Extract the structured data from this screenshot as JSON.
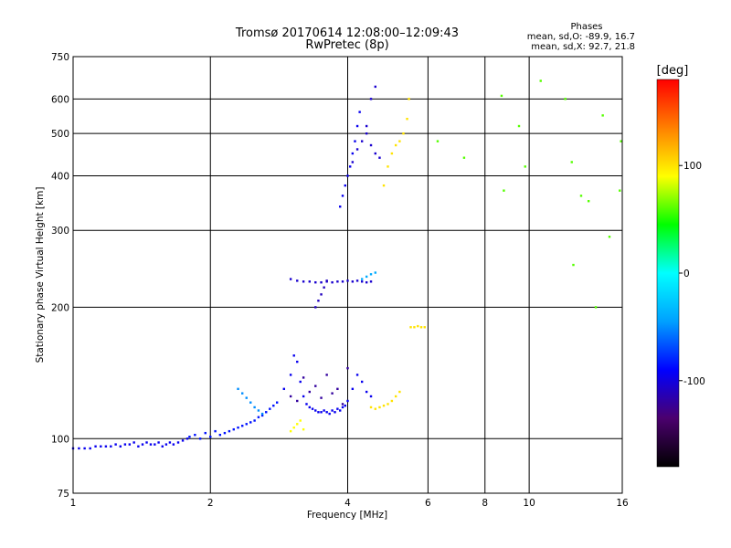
{
  "chart_data": {
    "type": "scatter",
    "title": "Tromsø 20170614 12:08:00–12:09:43",
    "subtitle": "RwPretec (8p)",
    "annotation": {
      "heading": "Phases",
      "o_line": "mean, sd,O: -89.9, 16.7",
      "x_line": "mean, sd,X:  92.7, 21.8"
    },
    "xlabel": "Frequency [MHz]",
    "ylabel": "Stationary phase Virtual Height [km]",
    "xscale": "log",
    "yscale": "log",
    "xlim": [
      1,
      16
    ],
    "ylim": [
      75,
      750
    ],
    "x_ticks": [
      1,
      2,
      4,
      6,
      8,
      10,
      16
    ],
    "x_tick_labels": [
      "1",
      "2",
      "4",
      "6",
      "8",
      "10",
      "16"
    ],
    "y_ticks": [
      75,
      100,
      200,
      300,
      400,
      500,
      600,
      750
    ],
    "y_tick_labels": [
      "75",
      "100",
      "200",
      "300",
      "400",
      "500",
      "600",
      "750"
    ],
    "grid": true,
    "colorbar": {
      "label": "[deg]",
      "range": [
        -180,
        180
      ],
      "ticks": [
        100,
        0,
        -100
      ],
      "tick_labels": [
        "100",
        "0",
        "-100"
      ]
    },
    "colormap": [
      "#000000",
      "#4b006e",
      "#0000ff",
      "#00a0ff",
      "#00ffff",
      "#00ff00",
      "#ffff00",
      "#ff8000",
      "#ff0000"
    ],
    "gridline_color": "#000000",
    "point_groups": [
      {
        "name": "o-trace-low",
        "phase": -95,
        "x": [
          1.0,
          1.03,
          1.06,
          1.09,
          1.12,
          1.15,
          1.18,
          1.21,
          1.24,
          1.27,
          1.3,
          1.33,
          1.36,
          1.39,
          1.42,
          1.45,
          1.48,
          1.51,
          1.54,
          1.57,
          1.6,
          1.63,
          1.66,
          1.7,
          1.74,
          1.78
        ],
        "y": [
          95,
          95,
          95,
          95,
          96,
          96,
          96,
          96,
          97,
          96,
          97,
          97,
          98,
          96,
          97,
          98,
          97,
          97,
          98,
          96,
          97,
          98,
          97,
          98,
          99,
          100
        ]
      },
      {
        "name": "o-trace-rise",
        "phase": -85,
        "x": [
          1.8,
          1.85,
          1.9,
          1.95,
          2.0,
          2.05,
          2.1,
          2.15,
          2.2,
          2.25,
          2.3,
          2.35,
          2.4,
          2.45,
          2.5,
          2.55,
          2.6,
          2.65,
          2.7,
          2.75,
          2.8
        ],
        "y": [
          101,
          102,
          100,
          103,
          101,
          104,
          102,
          103,
          104,
          105,
          106,
          107,
          108,
          109,
          110,
          112,
          113,
          115,
          117,
          119,
          121
        ]
      },
      {
        "name": "cyan-hook",
        "phase": -50,
        "x": [
          2.3,
          2.35,
          2.4,
          2.45,
          2.5,
          2.55,
          2.6
        ],
        "y": [
          130,
          127,
          124,
          121,
          118,
          116,
          114
        ]
      },
      {
        "name": "o-trace-mid",
        "phase": -95,
        "x": [
          2.9,
          3.0,
          3.05,
          3.1,
          3.15,
          3.2,
          3.25,
          3.3,
          3.35,
          3.4,
          3.45,
          3.5,
          3.55,
          3.6,
          3.65,
          3.7,
          3.75,
          3.8,
          3.85,
          3.9,
          3.95,
          4.0,
          4.1,
          4.2,
          4.3,
          4.4,
          4.5
        ],
        "y": [
          130,
          140,
          155,
          150,
          135,
          125,
          120,
          118,
          117,
          116,
          115,
          115,
          116,
          115,
          114,
          116,
          115,
          117,
          116,
          118,
          119,
          122,
          130,
          140,
          135,
          128,
          125
        ]
      },
      {
        "name": "mid-blue-noise",
        "phase": -120,
        "x": [
          3.0,
          3.1,
          3.2,
          3.3,
          3.4,
          3.5,
          3.6,
          3.7,
          3.8,
          3.9,
          4.0
        ],
        "y": [
          125,
          122,
          138,
          128,
          132,
          124,
          140,
          127,
          130,
          120,
          145
        ]
      },
      {
        "name": "yellow-low",
        "phase": 100,
        "x": [
          4.5,
          4.6,
          4.7,
          4.8,
          4.9,
          5.0,
          5.1,
          5.2
        ],
        "y": [
          118,
          117,
          118,
          119,
          120,
          122,
          125,
          128
        ]
      },
      {
        "name": "yellow-scatter-low",
        "phase": 90,
        "x": [
          3.0,
          3.05,
          3.1,
          3.15,
          3.2
        ],
        "y": [
          104,
          106,
          108,
          110,
          105
        ]
      },
      {
        "name": "e-layer",
        "phase": -105,
        "x": [
          3.0,
          3.1,
          3.2,
          3.3,
          3.4,
          3.5,
          3.6,
          3.7,
          3.8,
          3.9,
          4.0,
          4.1,
          4.2,
          4.3,
          4.4,
          4.5
        ],
        "y": [
          232,
          230,
          229,
          229,
          228,
          228,
          229,
          228,
          229,
          229,
          230,
          229,
          230,
          229,
          228,
          229
        ]
      },
      {
        "name": "e-layer-drop",
        "phase": -110,
        "x": [
          3.4,
          3.45,
          3.5,
          3.55,
          3.6
        ],
        "y": [
          200,
          207,
          214,
          222,
          230
        ]
      },
      {
        "name": "e-layer-cyan",
        "phase": -40,
        "x": [
          4.3,
          4.4,
          4.5,
          4.6
        ],
        "y": [
          232,
          235,
          238,
          240
        ]
      },
      {
        "name": "f-rise",
        "phase": -95,
        "x": [
          3.85,
          3.9,
          3.95,
          4.0,
          4.05,
          4.1,
          4.15,
          4.2,
          4.25
        ],
        "y": [
          340,
          360,
          380,
          400,
          420,
          450,
          480,
          520,
          560
        ]
      },
      {
        "name": "f-cluster",
        "phase": -105,
        "x": [
          4.1,
          4.2,
          4.3,
          4.4,
          4.5,
          4.6,
          4.7,
          4.4,
          4.5,
          4.6
        ],
        "y": [
          430,
          460,
          480,
          500,
          470,
          450,
          440,
          520,
          600,
          640
        ]
      },
      {
        "name": "f-yellow",
        "phase": 100,
        "x": [
          4.8,
          4.9,
          5.0,
          5.1,
          5.2,
          5.3,
          5.4,
          5.45
        ],
        "y": [
          380,
          420,
          450,
          470,
          480,
          500,
          540,
          600
        ]
      },
      {
        "name": "es-yellow",
        "phase": 100,
        "x": [
          5.5,
          5.6,
          5.7,
          5.8,
          5.9
        ],
        "y": [
          180,
          180,
          181,
          180,
          180
        ]
      },
      {
        "name": "high-scatter",
        "phase": 60,
        "x": [
          6.3,
          7.2,
          8.7,
          8.8,
          9.5,
          9.8,
          10.6,
          12.0,
          12.4,
          13.0,
          14.5,
          15.0,
          15.8,
          15.9,
          12.5,
          13.5,
          14.0
        ],
        "y": [
          480,
          440,
          610,
          370,
          520,
          420,
          660,
          600,
          430,
          360,
          550,
          290,
          370,
          480,
          250,
          350,
          200
        ]
      }
    ]
  }
}
